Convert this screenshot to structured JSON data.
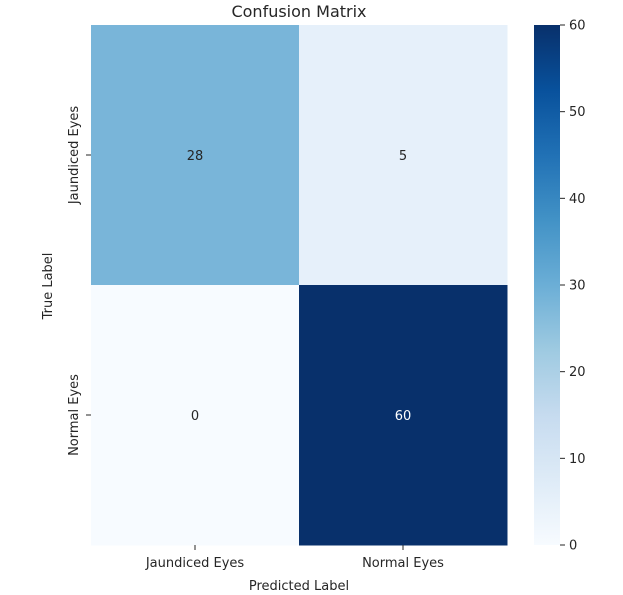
{
  "chart_data": {
    "type": "heatmap",
    "title": "Confusion Matrix",
    "xlabel": "Predicted Label",
    "ylabel": "True Label",
    "x_categories": [
      "Jaundiced Eyes",
      "Normal Eyes"
    ],
    "y_categories": [
      "Jaundiced Eyes",
      "Normal Eyes"
    ],
    "values": [
      [
        28,
        5
      ],
      [
        0,
        60
      ]
    ],
    "colorbar": {
      "range": [
        0,
        60
      ],
      "ticks": [
        0,
        10,
        20,
        30,
        40,
        50,
        60
      ],
      "colormap": "Blues"
    },
    "grid": false
  }
}
